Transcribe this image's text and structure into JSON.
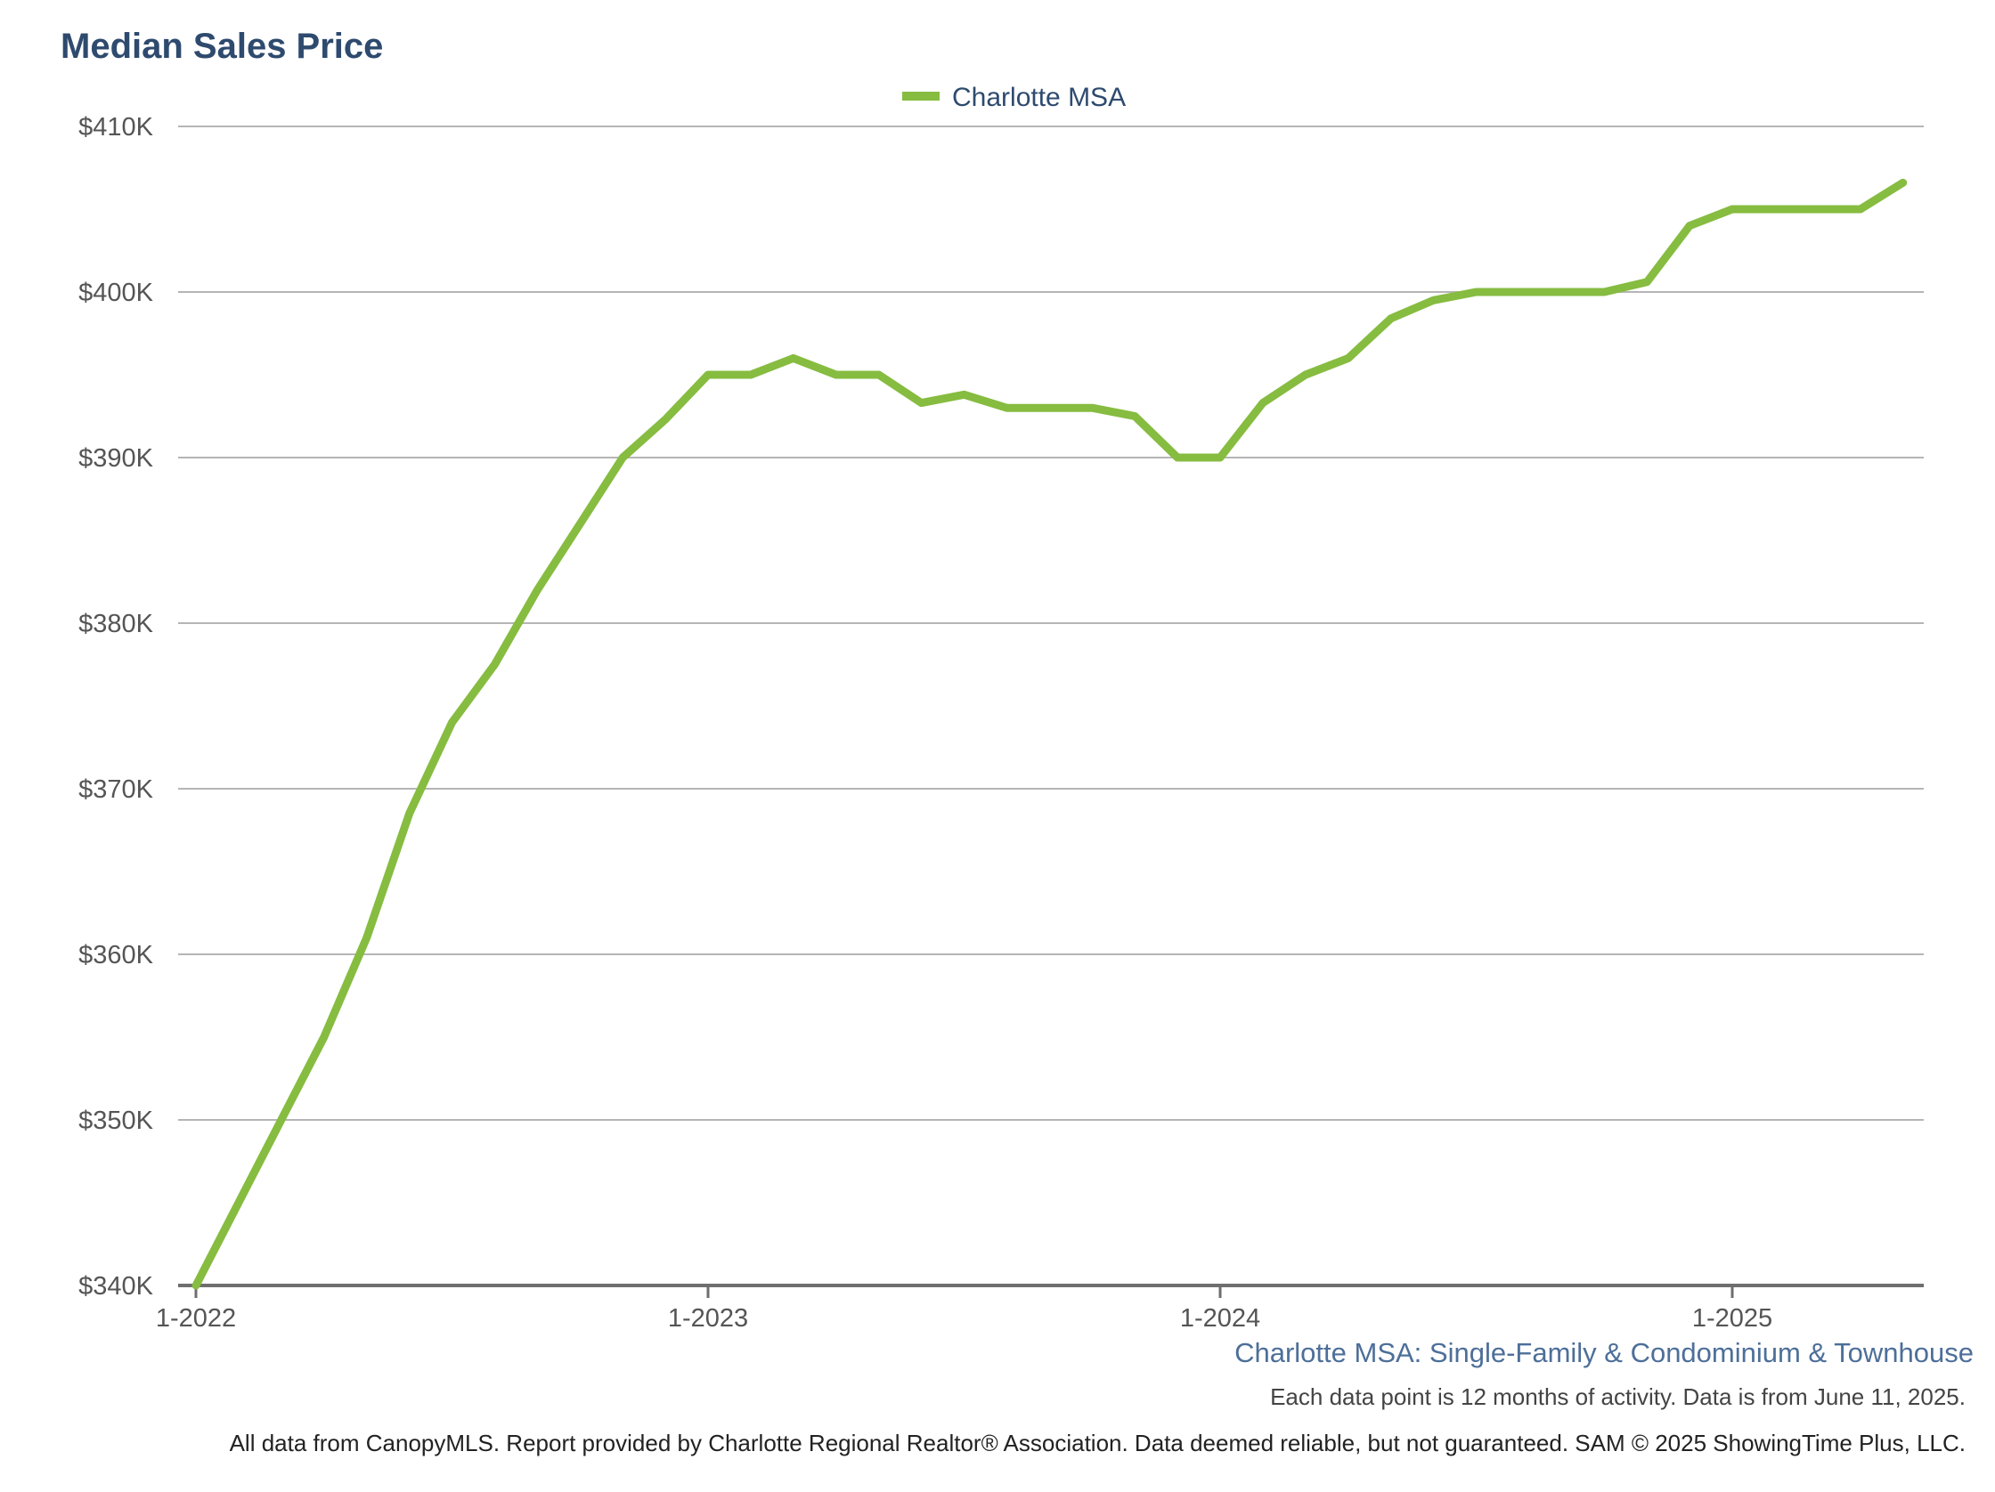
{
  "chart_data": {
    "type": "line",
    "title": "Median Sales Price",
    "xlabel": "",
    "ylabel": "",
    "ylim": [
      340000,
      410000
    ],
    "y_ticks": [
      {
        "value": 340000,
        "label": "$340K"
      },
      {
        "value": 350000,
        "label": "$350K"
      },
      {
        "value": 360000,
        "label": "$360K"
      },
      {
        "value": 370000,
        "label": "$370K"
      },
      {
        "value": 380000,
        "label": "$380K"
      },
      {
        "value": 390000,
        "label": "$390K"
      },
      {
        "value": 400000,
        "label": "$400K"
      },
      {
        "value": 410000,
        "label": "$410K"
      }
    ],
    "x_ticks": [
      "1-2022",
      "1-2023",
      "1-2024",
      "1-2025"
    ],
    "x": [
      "1-2022",
      "2-2022",
      "3-2022",
      "4-2022",
      "5-2022",
      "6-2022",
      "7-2022",
      "8-2022",
      "9-2022",
      "10-2022",
      "11-2022",
      "12-2022",
      "1-2023",
      "2-2023",
      "3-2023",
      "4-2023",
      "5-2023",
      "6-2023",
      "7-2023",
      "8-2023",
      "9-2023",
      "10-2023",
      "11-2023",
      "12-2023",
      "1-2024",
      "2-2024",
      "3-2024",
      "4-2024",
      "5-2024",
      "6-2024",
      "7-2024",
      "8-2024",
      "9-2024",
      "10-2024",
      "11-2024",
      "12-2024",
      "1-2025",
      "2-2025",
      "3-2025",
      "4-2025",
      "5-2025"
    ],
    "series": [
      {
        "name": "Charlotte MSA",
        "color": "#86bc40",
        "values": [
          340000,
          345000,
          350000,
          355000,
          361000,
          368500,
          374000,
          377500,
          382000,
          386000,
          390000,
          392300,
          395000,
          395000,
          396000,
          395000,
          395000,
          393300,
          393800,
          393000,
          393000,
          393000,
          392500,
          390000,
          390000,
          393300,
          395000,
          396000,
          398400,
          399500,
          400000,
          400000,
          400000,
          400000,
          400600,
          404000,
          405000,
          405000,
          405000,
          405000,
          406600
        ]
      }
    ],
    "legend_position": "top-center",
    "grid": true
  },
  "subtitle": "Charlotte MSA: Single-Family & Condominium & Townhouse",
  "note": "Each data point is 12 months of activity. Data is from June 11, 2025.",
  "footer": "All data from CanopyMLS. Report provided by Charlotte Regional Realtor® Association. Data deemed reliable, but not guaranteed. SAM © 2025 ShowingTime Plus, LLC."
}
